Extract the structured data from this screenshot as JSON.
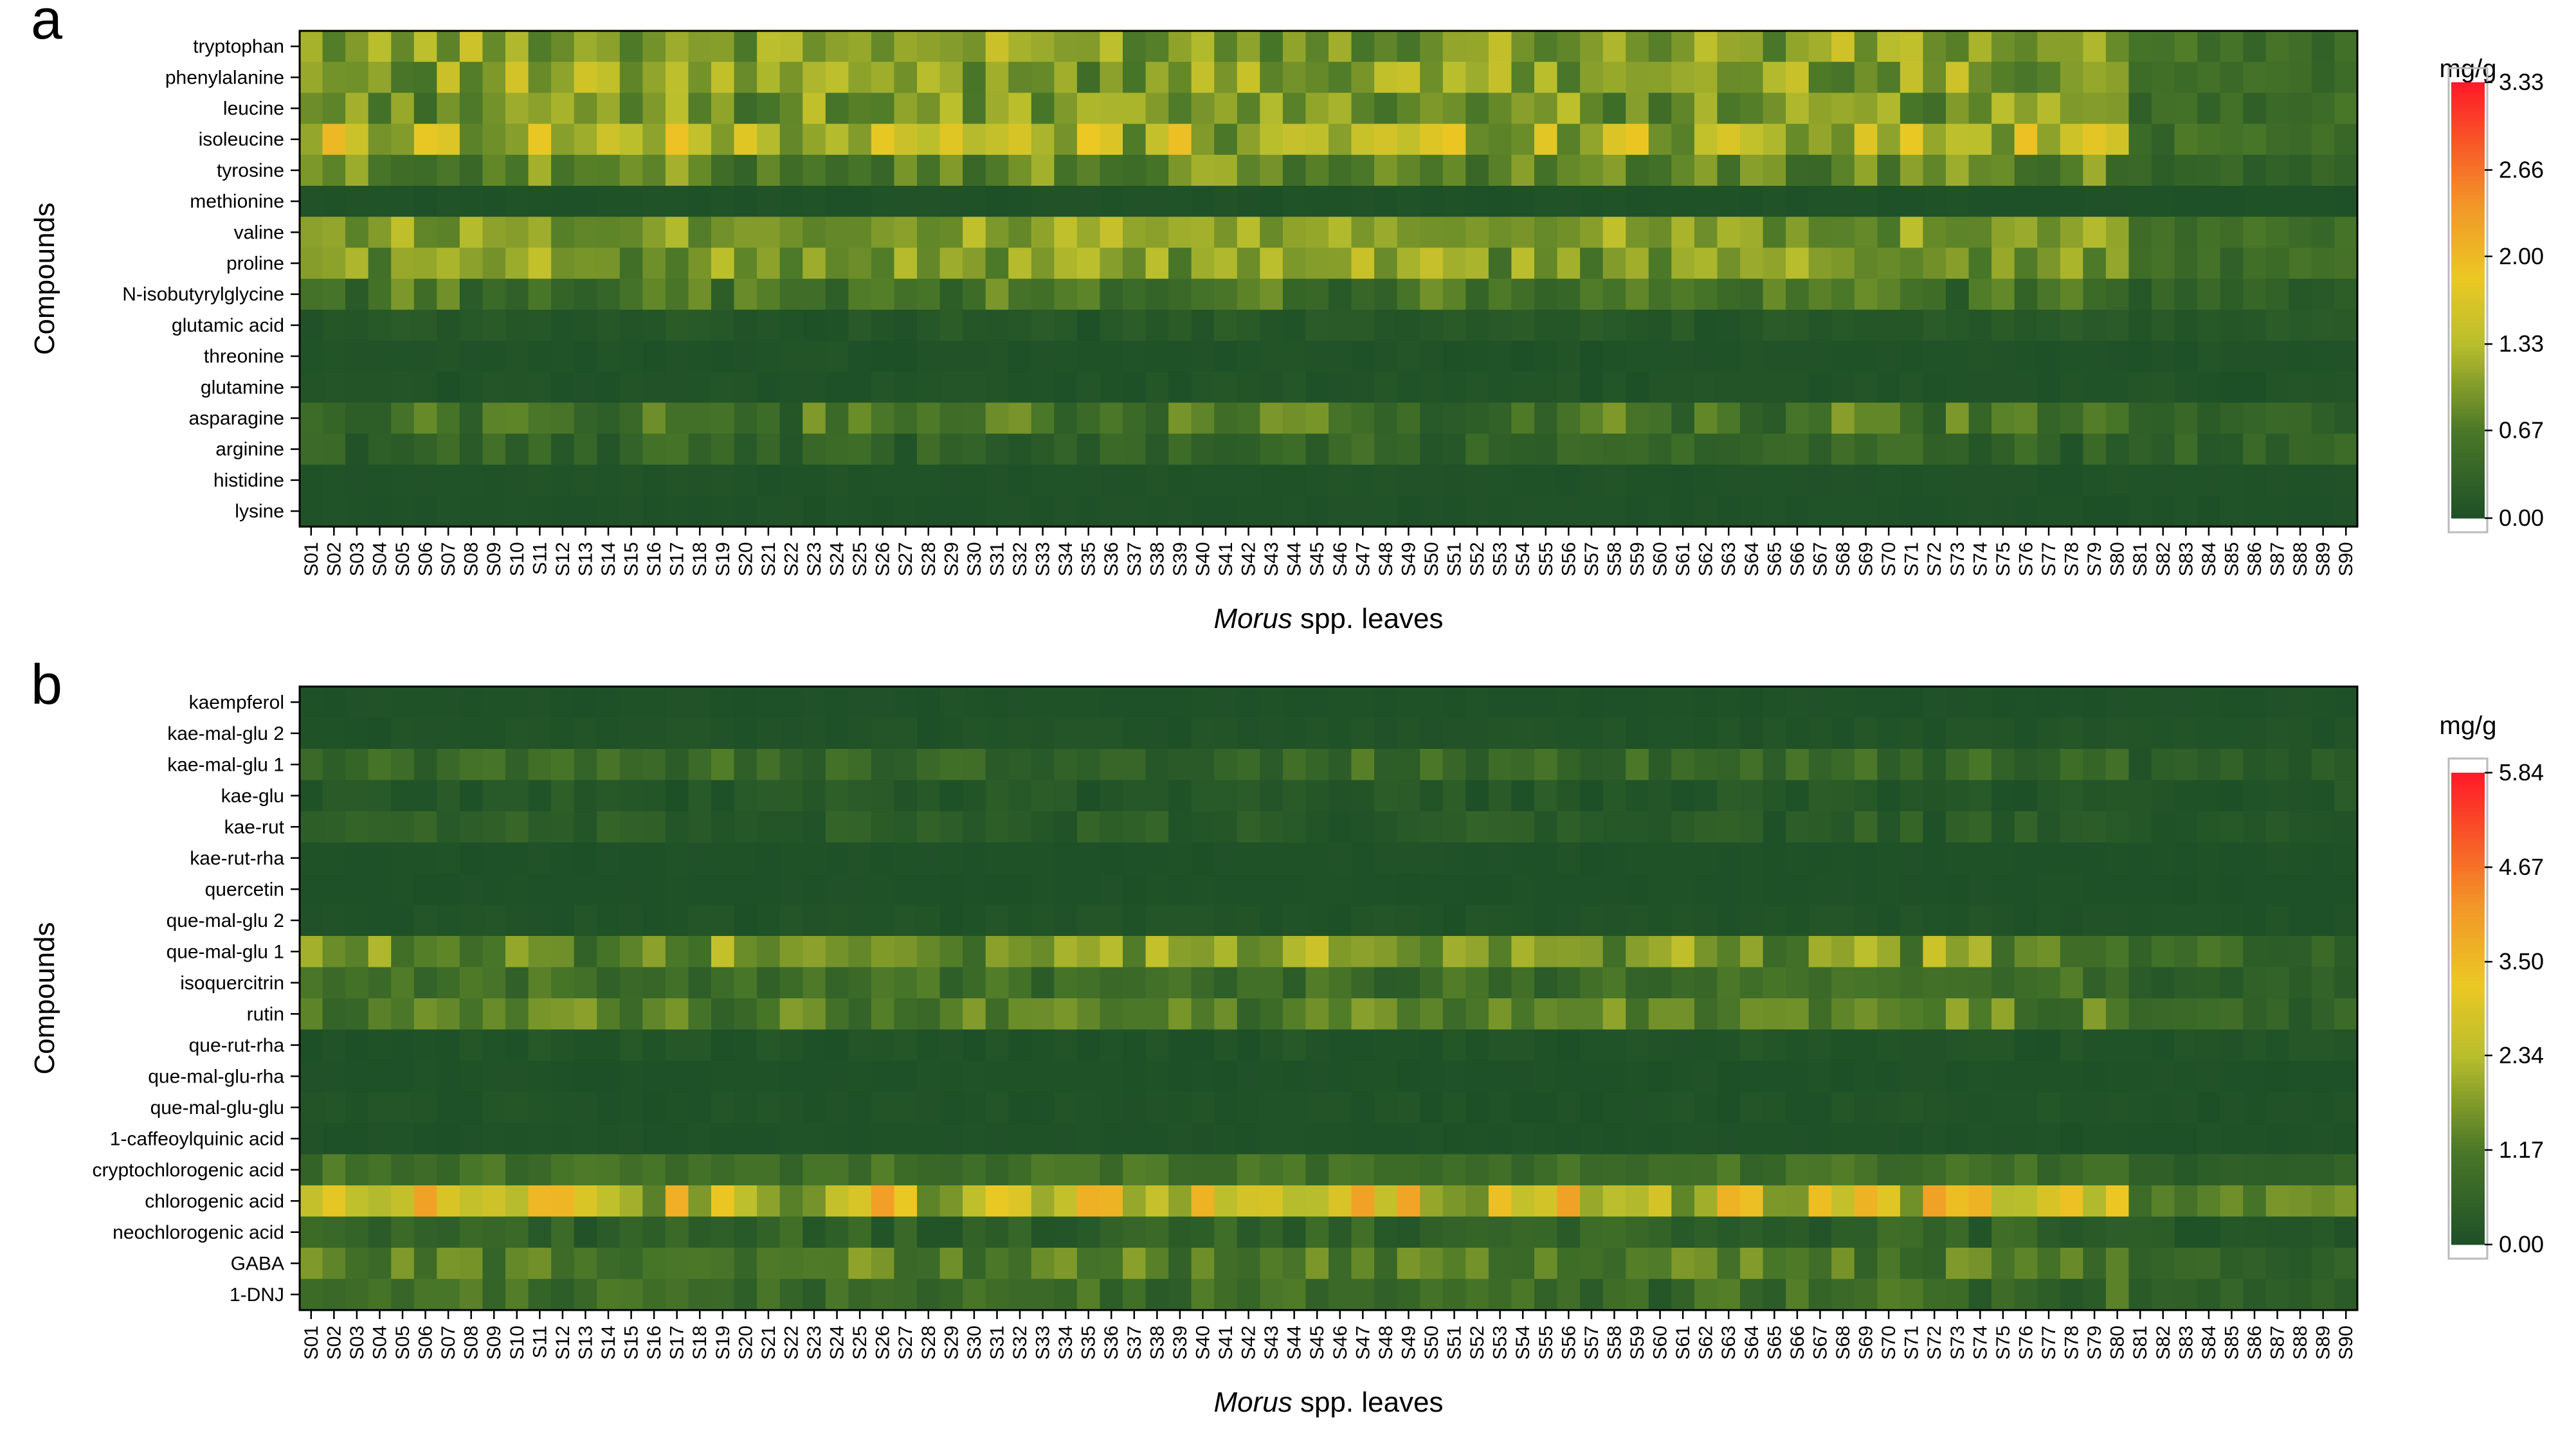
{
  "samples_count": 90,
  "chart_data": [
    {
      "type": "heatmap",
      "panel_label": "a",
      "xlabel_italic": "Morus",
      "xlabel_rest": " spp. leaves",
      "ylabel": "Compounds",
      "colorbar": {
        "title": "mg/g",
        "ticks": [
          0.0,
          0.67,
          1.33,
          2.0,
          2.66,
          3.33
        ],
        "tick_labels": [
          "0.00",
          "0.67",
          "1.33",
          "2.00",
          "2.66",
          "3.33"
        ],
        "vmin": 0,
        "vmax": 3.33
      },
      "rows": [
        {
          "name": "tryptophan",
          "base": 1.05,
          "amp": 0.55
        },
        {
          "name": "phenylalanine",
          "base": 1.05,
          "amp": 0.6
        },
        {
          "name": "leucine",
          "base": 0.9,
          "amp": 0.55
        },
        {
          "name": "isoleucine",
          "base": 1.35,
          "amp": 0.85
        },
        {
          "name": "tyrosine",
          "base": 0.75,
          "amp": 0.5
        },
        {
          "name": "methionine",
          "base": 0.03,
          "amp": 0.03
        },
        {
          "name": "valine",
          "base": 1.05,
          "amp": 0.45
        },
        {
          "name": "proline",
          "base": 1.0,
          "amp": 0.55
        },
        {
          "name": "N-isobutyrylglycine",
          "base": 0.55,
          "amp": 0.45
        },
        {
          "name": "glutamic acid",
          "base": 0.12,
          "amp": 0.12
        },
        {
          "name": "threonine",
          "base": 0.04,
          "amp": 0.04
        },
        {
          "name": "glutamine",
          "base": 0.05,
          "amp": 0.06
        },
        {
          "name": "asparagine",
          "base": 0.55,
          "amp": 0.5
        },
        {
          "name": "arginine",
          "base": 0.3,
          "amp": 0.3
        },
        {
          "name": "histidine",
          "base": 0.04,
          "amp": 0.03
        },
        {
          "name": "lysine",
          "base": 0.03,
          "amp": 0.03
        }
      ]
    },
    {
      "type": "heatmap",
      "panel_label": "b",
      "xlabel_italic": "Morus",
      "xlabel_rest": " spp. leaves",
      "ylabel": "Compounds",
      "colorbar": {
        "title": "mg/g",
        "ticks": [
          0.0,
          1.17,
          2.34,
          3.5,
          4.67,
          5.84
        ],
        "tick_labels": [
          "0.00",
          "1.17",
          "2.34",
          "3.50",
          "4.67",
          "5.84"
        ],
        "vmin": 0,
        "vmax": 5.84
      },
      "rows": [
        {
          "name": "kaempferol",
          "base": 0.04,
          "amp": 0.04
        },
        {
          "name": "kae-mal-glu 2",
          "base": 0.08,
          "amp": 0.1
        },
        {
          "name": "kae-mal-glu 1",
          "base": 0.7,
          "amp": 0.6
        },
        {
          "name": "kae-glu",
          "base": 0.2,
          "amp": 0.25
        },
        {
          "name": "kae-rut",
          "base": 0.35,
          "amp": 0.35
        },
        {
          "name": "kae-rut-rha",
          "base": 0.04,
          "amp": 0.04
        },
        {
          "name": "quercetin",
          "base": 0.03,
          "amp": 0.03
        },
        {
          "name": "que-mal-glu 2",
          "base": 0.08,
          "amp": 0.1
        },
        {
          "name": "que-mal-glu 1",
          "base": 1.6,
          "amp": 1.1
        },
        {
          "name": "isoquercitrin",
          "base": 0.8,
          "amp": 0.6
        },
        {
          "name": "rutin",
          "base": 1.2,
          "amp": 0.8
        },
        {
          "name": "que-rut-rha",
          "base": 0.1,
          "amp": 0.15
        },
        {
          "name": "que-mal-glu-rha",
          "base": 0.04,
          "amp": 0.04
        },
        {
          "name": "que-mal-glu-glu",
          "base": 0.08,
          "amp": 0.1
        },
        {
          "name": "1-caffeoylquinic acid",
          "base": 0.05,
          "amp": 0.05
        },
        {
          "name": "cryptochlorogenic acid",
          "base": 0.9,
          "amp": 0.45
        },
        {
          "name": "chlorogenic acid",
          "base": 2.7,
          "amp": 1.6
        },
        {
          "name": "neochlorogenic acid",
          "base": 0.5,
          "amp": 0.45
        },
        {
          "name": "GABA",
          "base": 1.2,
          "amp": 0.8
        },
        {
          "name": "1-DNJ",
          "base": 0.8,
          "amp": 0.7
        }
      ]
    }
  ]
}
